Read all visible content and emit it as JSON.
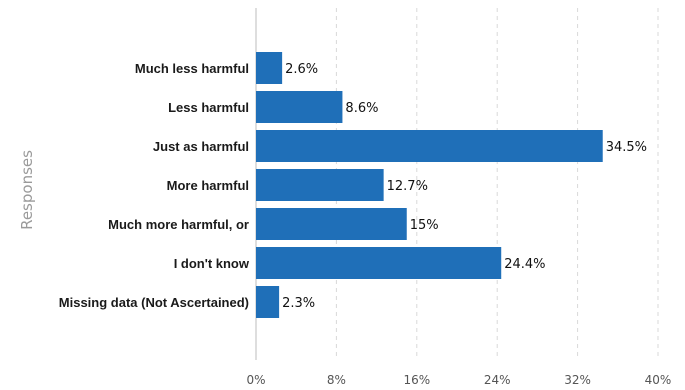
{
  "chart_data": {
    "type": "bar",
    "orientation": "horizontal",
    "categories": [
      "Much less harmful",
      "Less harmful",
      "Just as harmful",
      "More harmful",
      "Much more harmful, or",
      "I don't know",
      "Missing data (Not Ascertained)"
    ],
    "values": [
      2.6,
      8.6,
      34.5,
      12.7,
      15,
      24.4,
      2.3
    ],
    "value_labels": [
      "2.6%",
      "8.6%",
      "34.5%",
      "12.7%",
      "15%",
      "24.4%",
      "2.3%"
    ],
    "xlabel": "",
    "ylabel": "Responses",
    "xlim": [
      0,
      40
    ],
    "xticks": [
      0,
      8,
      16,
      24,
      32,
      40
    ],
    "xtick_labels": [
      "0%",
      "8%",
      "16%",
      "24%",
      "32%",
      "40%"
    ],
    "grid": "vertical dashed",
    "colors": {
      "bar": "#1f6fb8",
      "grid": "#d9d9d9",
      "axis": "#bdbdbd"
    }
  }
}
